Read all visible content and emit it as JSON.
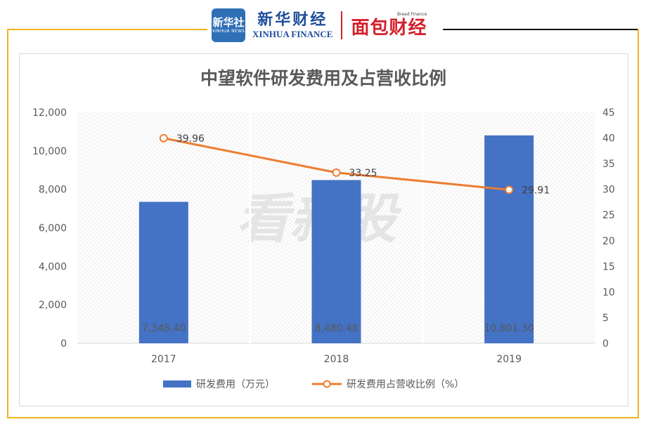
{
  "header": {
    "xinhua_badge_cn": "新华社",
    "xinhua_badge_en": "XINHUA NEWS",
    "xinhua_cn": "新华财经",
    "xinhua_en": "XINHUA FINANCE",
    "bread_en": "Bread Finance",
    "bread_cn": "面包财经"
  },
  "watermark": "看新股",
  "colors": {
    "bar": "#4472c4",
    "line": "#ed7d31",
    "frame": "#f0b41c"
  },
  "chart_data": {
    "type": "bar+line",
    "title": "中望软件研发费用及占营收比例",
    "categories": [
      "2017",
      "2018",
      "2019"
    ],
    "series": [
      {
        "name": "研发费用（万元）",
        "type": "bar",
        "axis": "left",
        "values": [
          7348.4,
          8480.48,
          10801.3
        ],
        "labels": [
          "7,348.40",
          "8,480.48",
          "10,801.30"
        ]
      },
      {
        "name": "研发费用占营收比例（%）",
        "type": "line",
        "axis": "right",
        "values": [
          39.96,
          33.25,
          29.91
        ],
        "labels": [
          "39.96",
          "33.25",
          "29.91"
        ]
      }
    ],
    "y_left": {
      "min": 0,
      "max": 12000,
      "ticks": [
        "0",
        "2,000",
        "4,000",
        "6,000",
        "8,000",
        "10,000",
        "12,000"
      ]
    },
    "y_right": {
      "min": 0,
      "max": 45,
      "ticks": [
        "0",
        "5",
        "10",
        "15",
        "20",
        "25",
        "30",
        "35",
        "40",
        "45"
      ]
    },
    "grid": false,
    "legend": "bottom"
  }
}
